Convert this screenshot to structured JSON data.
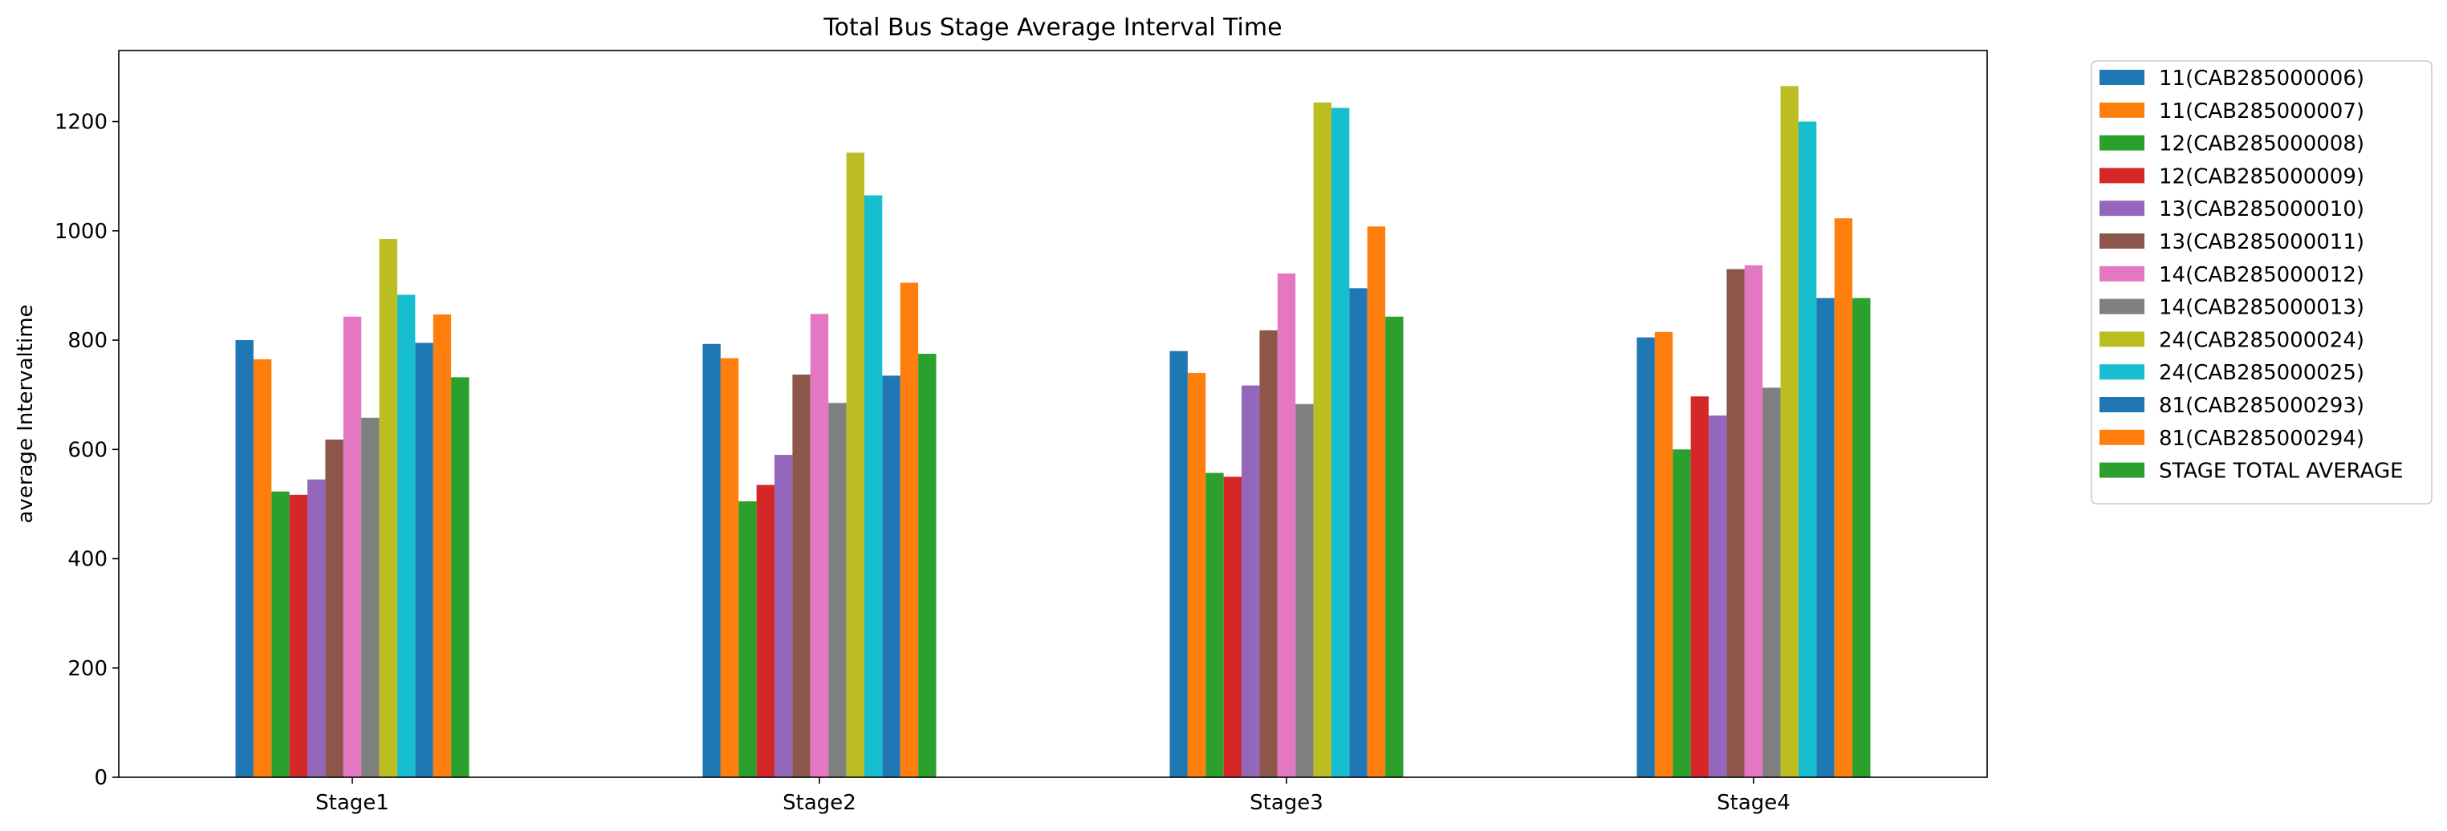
{
  "chart_data": {
    "type": "bar",
    "title": "Total Bus Stage Average Interval Time",
    "xlabel": "",
    "ylabel": "average Intervaltime",
    "categories": [
      "Stage1",
      "Stage2",
      "Stage3",
      "Stage4"
    ],
    "ylim": [
      0,
      1330
    ],
    "yticks": [
      0,
      200,
      400,
      600,
      800,
      1000,
      1200
    ],
    "grid": false,
    "legend_position": "outside-top-right",
    "series": [
      {
        "name": "11(CAB285000006)",
        "color": "#1f77b4",
        "values": [
          800,
          793,
          780,
          805
        ]
      },
      {
        "name": "11(CAB285000007)",
        "color": "#ff7f0e",
        "values": [
          765,
          767,
          740,
          815
        ]
      },
      {
        "name": "12(CAB285000008)",
        "color": "#2ca02c",
        "values": [
          523,
          505,
          557,
          600
        ]
      },
      {
        "name": "12(CAB285000009)",
        "color": "#d62728",
        "values": [
          517,
          535,
          550,
          697
        ]
      },
      {
        "name": "13(CAB285000010)",
        "color": "#9467bd",
        "values": [
          545,
          590,
          717,
          662
        ]
      },
      {
        "name": "13(CAB285000011)",
        "color": "#8c564b",
        "values": [
          618,
          737,
          818,
          930
        ]
      },
      {
        "name": "14(CAB285000012)",
        "color": "#e377c2",
        "values": [
          843,
          848,
          922,
          937
        ]
      },
      {
        "name": "14(CAB285000013)",
        "color": "#7f7f7f",
        "values": [
          658,
          685,
          683,
          713
        ]
      },
      {
        "name": "24(CAB285000024)",
        "color": "#bcbd22",
        "values": [
          985,
          1143,
          1235,
          1265
        ]
      },
      {
        "name": "24(CAB285000025)",
        "color": "#17becf",
        "values": [
          883,
          1065,
          1225,
          1200
        ]
      },
      {
        "name": "81(CAB285000293)",
        "color": "#1f77b4",
        "values": [
          795,
          735,
          895,
          877
        ]
      },
      {
        "name": "81(CAB285000294)",
        "color": "#ff7f0e",
        "values": [
          847,
          905,
          1008,
          1023
        ]
      },
      {
        "name": "STAGE TOTAL AVERAGE",
        "color": "#2ca02c",
        "values": [
          732,
          775,
          843,
          877
        ]
      }
    ]
  }
}
